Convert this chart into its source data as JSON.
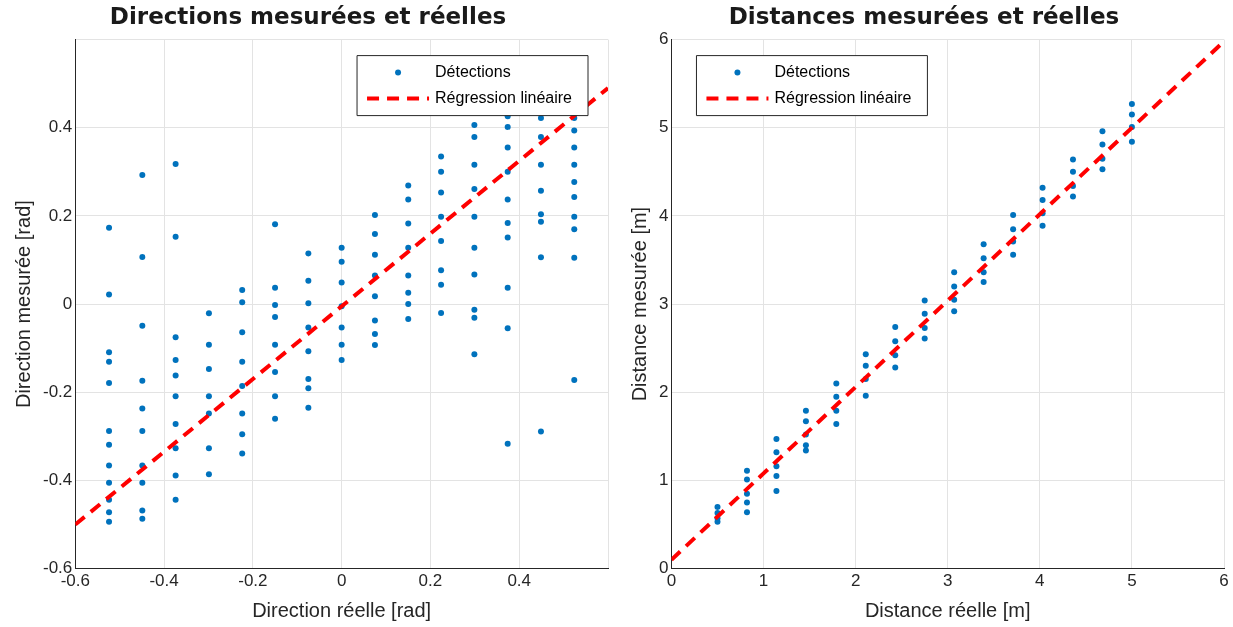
{
  "chart_data": [
    {
      "type": "scatter",
      "title": "Directions mesurées et réelles",
      "xlabel": "Direction réelle [rad]",
      "ylabel": "Direction mesurée [rad]",
      "xlim": [
        -0.6,
        0.6
      ],
      "ylim": [
        -0.6,
        0.6
      ],
      "xticks": [
        -0.6,
        -0.4,
        -0.2,
        0,
        0.2,
        0.4,
        {
          "value": 0.6,
          "label": null
        }
      ],
      "yticks": [
        -0.6,
        -0.4,
        -0.2,
        0,
        0.2,
        0.4,
        {
          "value": 0.6,
          "label": null
        }
      ],
      "grid": true,
      "legend": "top right",
      "marker": "circle",
      "series": [
        {
          "name": "Détections",
          "color": "#0072bd",
          "x": [
            -0.524,
            -0.524,
            -0.524,
            -0.524,
            -0.524,
            -0.524,
            -0.524,
            -0.524,
            -0.524,
            -0.524,
            -0.524,
            -0.524,
            -0.449,
            -0.449,
            -0.449,
            -0.449,
            -0.449,
            -0.449,
            -0.449,
            -0.449,
            -0.449,
            -0.449,
            -0.374,
            -0.374,
            -0.374,
            -0.374,
            -0.374,
            -0.374,
            -0.374,
            -0.374,
            -0.374,
            -0.374,
            -0.299,
            -0.299,
            -0.299,
            -0.299,
            -0.299,
            -0.299,
            -0.299,
            -0.224,
            -0.224,
            -0.224,
            -0.224,
            -0.224,
            -0.224,
            -0.224,
            -0.224,
            -0.15,
            -0.15,
            -0.15,
            -0.15,
            -0.15,
            -0.15,
            -0.15,
            -0.15,
            -0.075,
            -0.075,
            -0.075,
            -0.075,
            -0.075,
            -0.075,
            -0.075,
            -0.075,
            0,
            0,
            0,
            0,
            0,
            0,
            0,
            0.075,
            0.075,
            0.075,
            0.075,
            0.075,
            0.075,
            0.075,
            0.075,
            0.15,
            0.15,
            0.15,
            0.15,
            0.15,
            0.15,
            0.15,
            0.15,
            0.224,
            0.224,
            0.224,
            0.224,
            0.224,
            0.224,
            0.224,
            0.224,
            0.299,
            0.299,
            0.299,
            0.299,
            0.299,
            0.299,
            0.299,
            0.299,
            0.299,
            0.299,
            0.374,
            0.374,
            0.374,
            0.374,
            0.374,
            0.374,
            0.374,
            0.374,
            0.374,
            0.374,
            0.449,
            0.449,
            0.449,
            0.449,
            0.449,
            0.449,
            0.449,
            0.449,
            0.524,
            0.524,
            0.524,
            0.524,
            0.524,
            0.524,
            0.524,
            0.524,
            0.524,
            0.524
          ],
          "values": [
            0.173,
            0.022,
            -0.109,
            -0.131,
            -0.179,
            -0.288,
            -0.319,
            -0.366,
            -0.405,
            -0.444,
            -0.472,
            -0.494,
            0.293,
            0.107,
            -0.049,
            -0.174,
            -0.237,
            -0.288,
            -0.366,
            -0.405,
            -0.468,
            -0.487,
            0.318,
            0.153,
            -0.075,
            -0.127,
            -0.162,
            -0.209,
            -0.272,
            -0.327,
            -0.389,
            -0.444,
            -0.021,
            -0.092,
            -0.147,
            -0.209,
            -0.248,
            -0.327,
            -0.386,
            0.032,
            0.004,
            -0.064,
            -0.131,
            -0.186,
            -0.248,
            -0.295,
            -0.339,
            0.181,
            0.037,
            -0.002,
            -0.029,
            -0.092,
            -0.154,
            -0.209,
            -0.26,
            0.115,
            0.053,
            0.002,
            -0.053,
            -0.107,
            -0.17,
            -0.191,
            -0.235,
            0.128,
            0.096,
            0.049,
            -0.005,
            -0.053,
            -0.092,
            -0.127,
            0.202,
            0.159,
            0.112,
            0.065,
            0.018,
            -0.037,
            -0.068,
            -0.093,
            0.269,
            0.237,
            0.183,
            0.128,
            0.065,
            0.026,
            0,
            -0.034,
            0.335,
            0.3,
            0.253,
            0.198,
            0.143,
            0.077,
            0.044,
            -0.02,
            0.406,
            0.379,
            0.316,
            0.261,
            0.198,
            0.128,
            0.067,
            -0.013,
            -0.031,
            -0.114,
            0.426,
            0.402,
            0.355,
            0.3,
            0.237,
            0.184,
            0.151,
            0.037,
            -0.055,
            -0.317,
            0.422,
            0.379,
            0.316,
            0.257,
            0.204,
            0.187,
            0.106,
            -0.289,
            0.422,
            0.394,
            0.355,
            0.316,
            0.277,
            0.243,
            0.198,
            0.17,
            0.105,
            -0.172
          ]
        },
        {
          "name": "Régression linéaire",
          "type": "line",
          "color": "#ff0000",
          "line_style": "dashed",
          "marker": "none",
          "x": [
            -0.6,
            0.6
          ],
          "values": [
            -0.5,
            0.49
          ]
        }
      ]
    },
    {
      "type": "scatter",
      "title": "Distances mesurées et réelles",
      "xlabel": "Distance réelle [m]",
      "ylabel": "Distance mesurée [m]",
      "xlim": [
        0,
        6
      ],
      "ylim": [
        0,
        6
      ],
      "xticks": [
        0,
        1,
        2,
        3,
        4,
        5,
        6
      ],
      "yticks": [
        0,
        1,
        2,
        3,
        4,
        5,
        6
      ],
      "grid": true,
      "legend": "top left",
      "marker": "circle",
      "series": [
        {
          "name": "Détections",
          "color": "#0072bd",
          "x": [
            0.5,
            0.5,
            0.5,
            0.5,
            0.82,
            0.82,
            0.82,
            0.82,
            0.82,
            1.14,
            1.14,
            1.14,
            1.14,
            1.14,
            1.46,
            1.46,
            1.46,
            1.46,
            1.46,
            1.79,
            1.79,
            1.79,
            1.79,
            2.11,
            2.11,
            2.11,
            2.11,
            2.43,
            2.43,
            2.43,
            2.43,
            2.75,
            2.75,
            2.75,
            2.75,
            3.07,
            3.07,
            3.07,
            3.07,
            3.39,
            3.39,
            3.39,
            3.39,
            3.71,
            3.71,
            3.71,
            3.71,
            4.03,
            4.03,
            4.03,
            4.03,
            4.36,
            4.36,
            4.36,
            4.36,
            4.68,
            4.68,
            4.68,
            4.68,
            5,
            5,
            5,
            5
          ],
          "values": [
            0.7,
            0.63,
            0.57,
            0.53,
            1.11,
            1.01,
            0.85,
            0.75,
            0.64,
            1.47,
            1.32,
            1.16,
            1.05,
            0.88,
            1.79,
            1.67,
            1.52,
            1.4,
            1.34,
            2.1,
            1.95,
            1.79,
            1.64,
            2.43,
            2.3,
            2.15,
            1.96,
            2.74,
            2.58,
            2.42,
            2.28,
            3.04,
            2.89,
            2.73,
            2.61,
            3.36,
            3.2,
            3.05,
            2.92,
            3.68,
            3.52,
            3.36,
            3.25,
            4.01,
            3.85,
            3.71,
            3.56,
            4.32,
            4.18,
            4.03,
            3.89,
            4.64,
            4.5,
            4.34,
            4.22,
            4.96,
            4.81,
            4.65,
            4.53,
            5.27,
            5.15,
            5.01,
            4.84
          ]
        },
        {
          "name": "Régression linéaire",
          "type": "line",
          "color": "#ff0000",
          "line_style": "dashed",
          "marker": "none",
          "x": [
            0,
            6
          ],
          "values": [
            0.1,
            5.98
          ]
        }
      ]
    }
  ]
}
